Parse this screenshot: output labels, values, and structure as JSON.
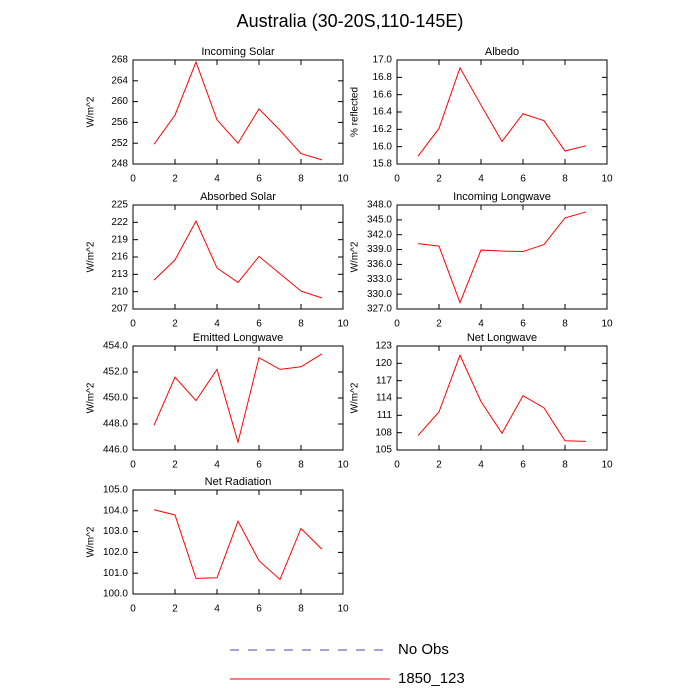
{
  "title": "Australia (30-20S,110-145E)",
  "legend": [
    {
      "name": "No Obs",
      "color": "#4a4aa8",
      "dashed": true
    },
    {
      "name": "1850_123",
      "color": "#ff0000",
      "dashed": false
    }
  ],
  "chart_data": [
    {
      "type": "line",
      "title": "Incoming Solar",
      "ylabel": "W/m^2",
      "x": [
        1,
        2,
        3,
        4,
        5,
        6,
        7,
        8,
        9
      ],
      "xlim": [
        0,
        10
      ],
      "xticks": [
        0,
        2,
        4,
        6,
        8,
        10
      ],
      "ylim": [
        248,
        268
      ],
      "yticks": [
        248,
        252,
        256,
        260,
        264,
        268
      ],
      "series": [
        {
          "color": "#ff0000",
          "values": [
            251.8,
            257.4,
            267.6,
            256.5,
            252.0,
            258.6,
            254.5,
            250.0,
            248.8
          ]
        }
      ]
    },
    {
      "type": "line",
      "title": "Albedo",
      "ylabel": "% reflected",
      "x": [
        1,
        2,
        3,
        4,
        5,
        6,
        7,
        8,
        9
      ],
      "xlim": [
        0,
        10
      ],
      "xticks": [
        0,
        2,
        4,
        6,
        8,
        10
      ],
      "ylim": [
        15.8,
        17.0
      ],
      "yticks": [
        15.8,
        {
          "value": 16,
          "label": "16.0"
        },
        16.2,
        16.4,
        16.6,
        16.8,
        {
          "value": 17,
          "label": "17.0"
        }
      ],
      "series": [
        {
          "color": "#ff0000",
          "values": [
            15.89,
            16.21,
            16.91,
            16.48,
            16.06,
            16.38,
            16.3,
            15.95,
            16.01
          ]
        }
      ]
    },
    {
      "type": "line",
      "title": "Absorbed Solar",
      "ylabel": "W/m^2",
      "x": [
        1,
        2,
        3,
        4,
        5,
        6,
        7,
        8,
        9
      ],
      "xlim": [
        0,
        10
      ],
      "xticks": [
        0,
        2,
        4,
        6,
        8,
        10
      ],
      "ylim": [
        207,
        225
      ],
      "yticks": [
        207,
        210,
        213,
        216,
        219,
        222,
        225
      ],
      "series": [
        {
          "color": "#ff0000",
          "values": [
            212.0,
            215.5,
            222.2,
            214.1,
            211.6,
            216.1,
            213.1,
            210.1,
            208.9
          ]
        }
      ]
    },
    {
      "type": "line",
      "title": "Incoming Longwave",
      "ylabel": "W/m^2",
      "x": [
        1,
        2,
        3,
        4,
        5,
        6,
        7,
        8,
        9
      ],
      "xlim": [
        0,
        10
      ],
      "xticks": [
        0,
        2,
        4,
        6,
        8,
        10
      ],
      "ylim": [
        327,
        348
      ],
      "yticks": [
        {
          "value": 327,
          "label": "327.0"
        },
        {
          "value": 330,
          "label": "330.0"
        },
        {
          "value": 333,
          "label": "333.0"
        },
        {
          "value": 336,
          "label": "336.0"
        },
        {
          "value": 339,
          "label": "339.0"
        },
        {
          "value": 342,
          "label": "342.0"
        },
        {
          "value": 345,
          "label": "345.0"
        },
        {
          "value": 348,
          "label": "348.0"
        }
      ],
      "series": [
        {
          "color": "#ff0000",
          "values": [
            340.2,
            339.7,
            328.3,
            338.9,
            338.7,
            338.6,
            340.0,
            345.4,
            346.6
          ]
        }
      ]
    },
    {
      "type": "line",
      "title": "Emitted Longwave",
      "ylabel": "W/m^2",
      "x": [
        1,
        2,
        3,
        4,
        5,
        6,
        7,
        8,
        9
      ],
      "xlim": [
        0,
        10
      ],
      "xticks": [
        0,
        2,
        4,
        6,
        8,
        10
      ],
      "ylim": [
        446,
        454
      ],
      "yticks": [
        {
          "value": 446,
          "label": "446.0"
        },
        {
          "value": 448,
          "label": "448.0"
        },
        {
          "value": 450,
          "label": "450.0"
        },
        {
          "value": 452,
          "label": "452.0"
        },
        {
          "value": 454,
          "label": "454.0"
        }
      ],
      "series": [
        {
          "color": "#ff0000",
          "values": [
            447.9,
            451.6,
            449.8,
            452.2,
            446.6,
            453.1,
            452.2,
            452.4,
            453.4
          ]
        }
      ]
    },
    {
      "type": "line",
      "title": "Net Longwave",
      "ylabel": "W/m^2",
      "x": [
        1,
        2,
        3,
        4,
        5,
        6,
        7,
        8,
        9
      ],
      "xlim": [
        0,
        10
      ],
      "xticks": [
        0,
        2,
        4,
        6,
        8,
        10
      ],
      "ylim": [
        105,
        123
      ],
      "yticks": [
        105,
        108,
        111,
        114,
        117,
        120,
        123
      ],
      "series": [
        {
          "color": "#ff0000",
          "values": [
            107.5,
            111.6,
            121.4,
            113.4,
            107.9,
            114.4,
            112.3,
            106.6,
            106.5
          ]
        }
      ]
    },
    {
      "type": "line",
      "title": "Net Radiation",
      "ylabel": "W/m^2",
      "x": [
        1,
        2,
        3,
        4,
        5,
        6,
        7,
        8,
        9
      ],
      "xlim": [
        0,
        10
      ],
      "xticks": [
        0,
        2,
        4,
        6,
        8,
        10
      ],
      "ylim": [
        100,
        105
      ],
      "yticks": [
        {
          "value": 100,
          "label": "100.0"
        },
        {
          "value": 101,
          "label": "101.0"
        },
        {
          "value": 102,
          "label": "102.0"
        },
        {
          "value": 103,
          "label": "103.0"
        },
        {
          "value": 104,
          "label": "104.0"
        },
        {
          "value": 105,
          "label": "105.0"
        }
      ],
      "series": [
        {
          "color": "#ff0000",
          "values": [
            104.05,
            103.8,
            100.75,
            100.78,
            103.5,
            101.6,
            100.7,
            103.15,
            102.15
          ]
        }
      ]
    }
  ]
}
